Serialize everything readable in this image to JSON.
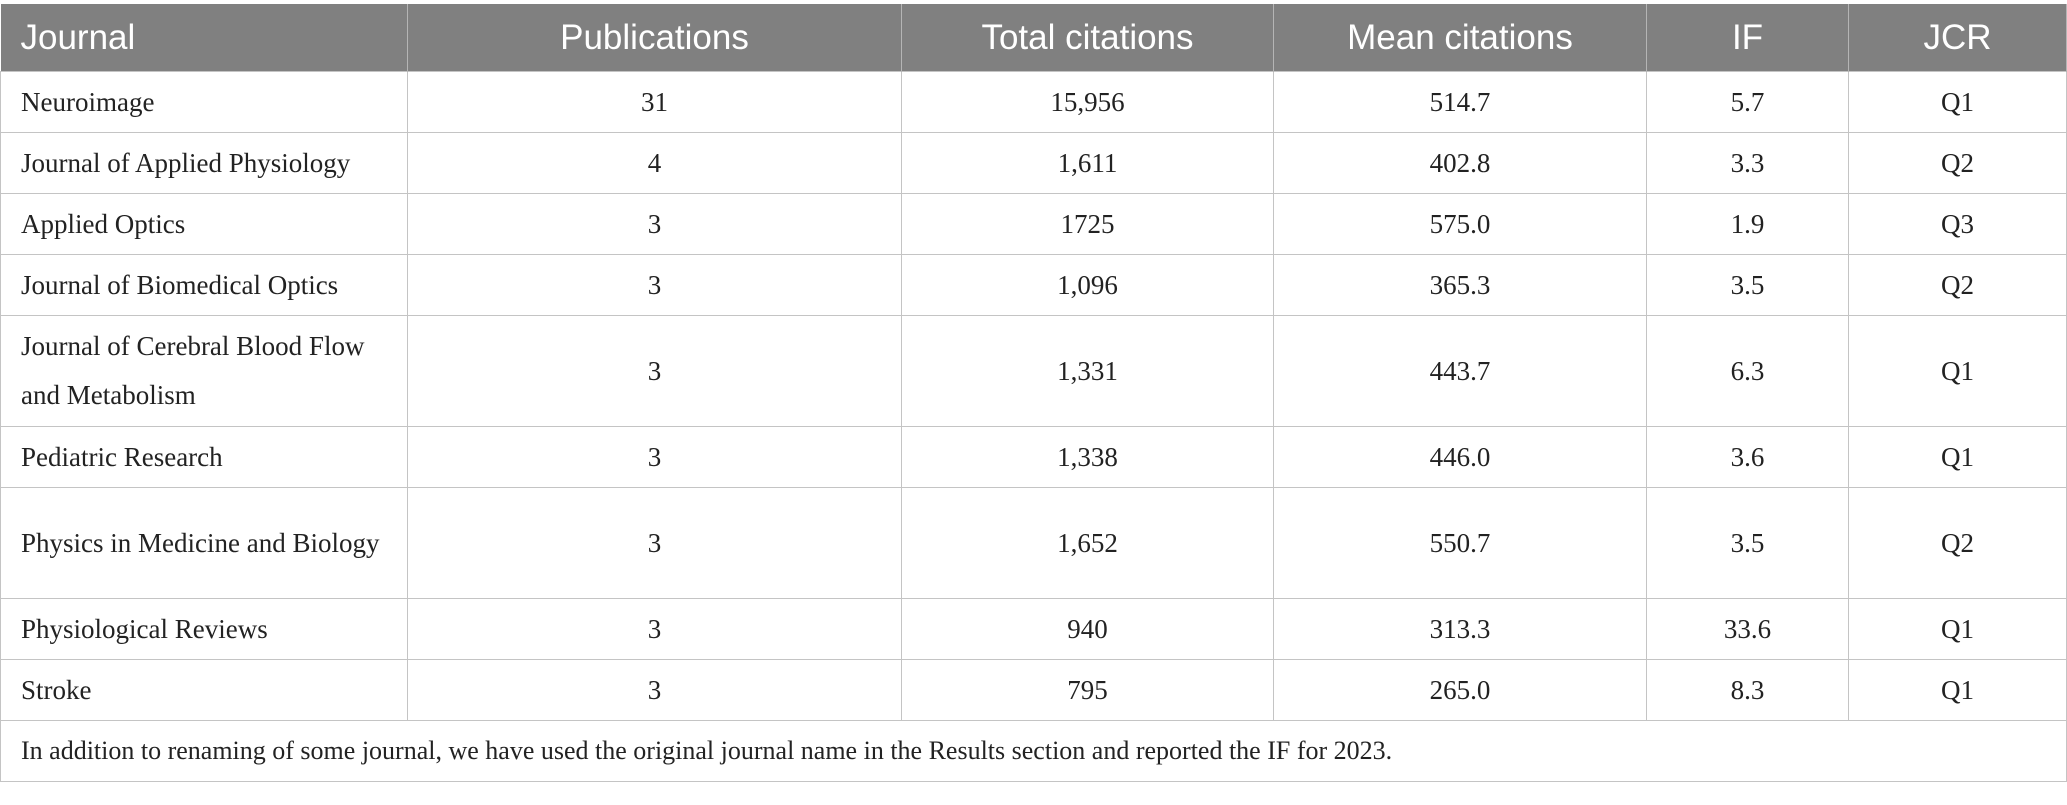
{
  "table": {
    "headers": [
      "Journal",
      "Publications",
      "Total citations",
      "Mean citations",
      "IF",
      "JCR"
    ],
    "rows": [
      [
        "Neuroimage",
        "31",
        "15,956",
        "514.7",
        "5.7",
        "Q1"
      ],
      [
        "Journal of Applied Physiology",
        "4",
        "1,611",
        "402.8",
        "3.3",
        "Q2"
      ],
      [
        "Applied Optics",
        "3",
        "1725",
        "575.0",
        "1.9",
        "Q3"
      ],
      [
        "Journal of Biomedical Optics",
        "3",
        "1,096",
        "365.3",
        "3.5",
        "Q2"
      ],
      [
        "Journal of Cerebral Blood Flow and Metabolism",
        "3",
        "1,331",
        "443.7",
        "6.3",
        "Q1"
      ],
      [
        "Pediatric Research",
        "3",
        "1,338",
        "446.0",
        "3.6",
        "Q1"
      ],
      [
        "Physics in Medicine and Biology",
        "3",
        "1,652",
        "550.7",
        "3.5",
        "Q2"
      ],
      [
        "Physiological Reviews",
        "3",
        "940",
        "313.3",
        "33.6",
        "Q1"
      ],
      [
        "Stroke",
        "3",
        "795",
        "265.0",
        "8.3",
        "Q1"
      ]
    ],
    "footnote": "In addition to renaming of some journal, we have used the original journal name in the Results section and reported the IF for 2023."
  },
  "colors": {
    "header_bg": "#808080",
    "header_text": "#ffffff",
    "border": "#c4c4c4"
  }
}
